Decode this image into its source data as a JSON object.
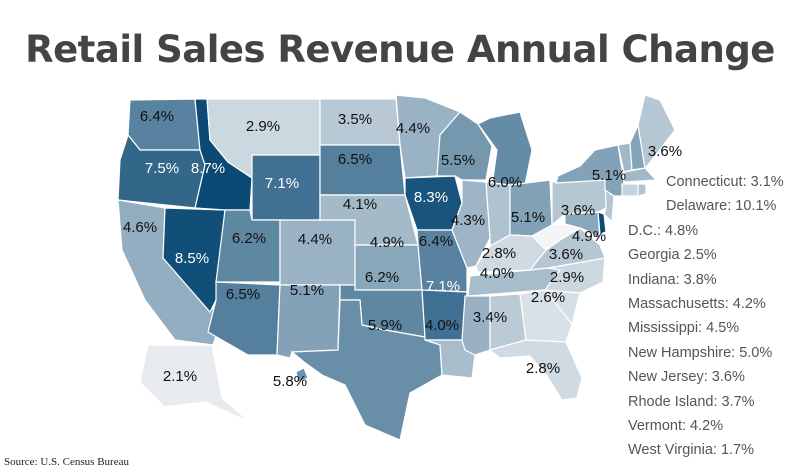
{
  "title": "Retail Sales Revenue Annual Change",
  "source": "Source: U.S. Census Bureau",
  "color_scale": {
    "low": "#f4f5f6",
    "high": "#0b4a74",
    "min": 1.7,
    "max": 8.7
  },
  "states": [
    {
      "id": "WA",
      "value": 6.4,
      "label": "6.4%"
    },
    {
      "id": "OR",
      "value": 7.5,
      "label": "7.5%"
    },
    {
      "id": "CA",
      "value": 4.6,
      "label": "4.6%"
    },
    {
      "id": "NV",
      "value": 8.5,
      "label": "8.5%"
    },
    {
      "id": "ID",
      "value": 8.7,
      "label": "8.7%"
    },
    {
      "id": "MT",
      "value": 2.9,
      "label": "2.9%"
    },
    {
      "id": "WY",
      "value": 7.1,
      "label": "7.1%"
    },
    {
      "id": "UT",
      "value": 6.2,
      "label": "6.2%"
    },
    {
      "id": "CO",
      "value": 4.4,
      "label": "4.4%"
    },
    {
      "id": "AZ",
      "value": 6.5,
      "label": "6.5%"
    },
    {
      "id": "NM",
      "value": 5.1,
      "label": "5.1%"
    },
    {
      "id": "ND",
      "value": 3.5,
      "label": "3.5%"
    },
    {
      "id": "SD",
      "value": 6.5,
      "label": "6.5%"
    },
    {
      "id": "NE",
      "value": 4.1,
      "label": "4.1%"
    },
    {
      "id": "KS",
      "value": 4.9,
      "label": "4.9%"
    },
    {
      "id": "OK",
      "value": 6.2,
      "label": "6.2%"
    },
    {
      "id": "TX",
      "value": 5.9,
      "label": "5.9%"
    },
    {
      "id": "MN",
      "value": 4.4,
      "label": "4.4%"
    },
    {
      "id": "IA",
      "value": 8.3,
      "label": "8.3%"
    },
    {
      "id": "MO",
      "value": 6.4,
      "label": "6.4%"
    },
    {
      "id": "AR",
      "value": 7.1,
      "label": "7.1%"
    },
    {
      "id": "LA",
      "value": 4.0,
      "label": "4.0%"
    },
    {
      "id": "WI",
      "value": 5.5,
      "label": "5.5%"
    },
    {
      "id": "IL",
      "value": 4.3,
      "label": "4.3%"
    },
    {
      "id": "MI",
      "value": 6.0,
      "label": "6.0%"
    },
    {
      "id": "IN",
      "value": 3.8,
      "label": ""
    },
    {
      "id": "OH",
      "value": 5.1,
      "label": "5.1%"
    },
    {
      "id": "KY",
      "value": 2.8,
      "label": "2.8%"
    },
    {
      "id": "TN",
      "value": 4.0,
      "label": "4.0%"
    },
    {
      "id": "MS",
      "value": 4.5,
      "label": ""
    },
    {
      "id": "AL",
      "value": 3.4,
      "label": "3.4%"
    },
    {
      "id": "GA",
      "value": 2.5,
      "label": ""
    },
    {
      "id": "FL",
      "value": 2.8,
      "label": "2.8%"
    },
    {
      "id": "SC",
      "value": 2.6,
      "label": "2.6%"
    },
    {
      "id": "NC",
      "value": 2.9,
      "label": "2.9%"
    },
    {
      "id": "VA",
      "value": 3.6,
      "label": "3.6%"
    },
    {
      "id": "WV",
      "value": 1.7,
      "label": ""
    },
    {
      "id": "MD",
      "value": 4.9,
      "label": "4.9%"
    },
    {
      "id": "DE",
      "value": 10.1,
      "label": ""
    },
    {
      "id": "NJ",
      "value": 3.6,
      "label": ""
    },
    {
      "id": "PA",
      "value": 3.6,
      "label": "3.6%"
    },
    {
      "id": "NY",
      "value": 5.1,
      "label": "5.1%"
    },
    {
      "id": "VT",
      "value": 4.2,
      "label": ""
    },
    {
      "id": "NH",
      "value": 5.0,
      "label": ""
    },
    {
      "id": "ME",
      "value": 3.6,
      "label": "3.6%"
    },
    {
      "id": "MA",
      "value": 4.2,
      "label": ""
    },
    {
      "id": "CT",
      "value": 3.1,
      "label": ""
    },
    {
      "id": "RI",
      "value": 3.7,
      "label": ""
    },
    {
      "id": "AK",
      "value": 2.1,
      "label": "2.1%"
    },
    {
      "id": "HI",
      "value": 5.8,
      "label": "5.8%"
    }
  ],
  "callouts": [
    "Connecticut: 3.1%",
    "Delaware: 10.1%",
    "D.C.: 4.8%",
    "Georgia 2.5%",
    "Indiana: 3.8%",
    "Massachusetts: 4.2%",
    "Mississippi: 4.5%",
    "New Hampshire: 5.0%",
    "New Jersey: 3.6%",
    "Rhode Island: 3.7%",
    "Vermont: 4.2%",
    "West Virginia: 1.7%"
  ]
}
